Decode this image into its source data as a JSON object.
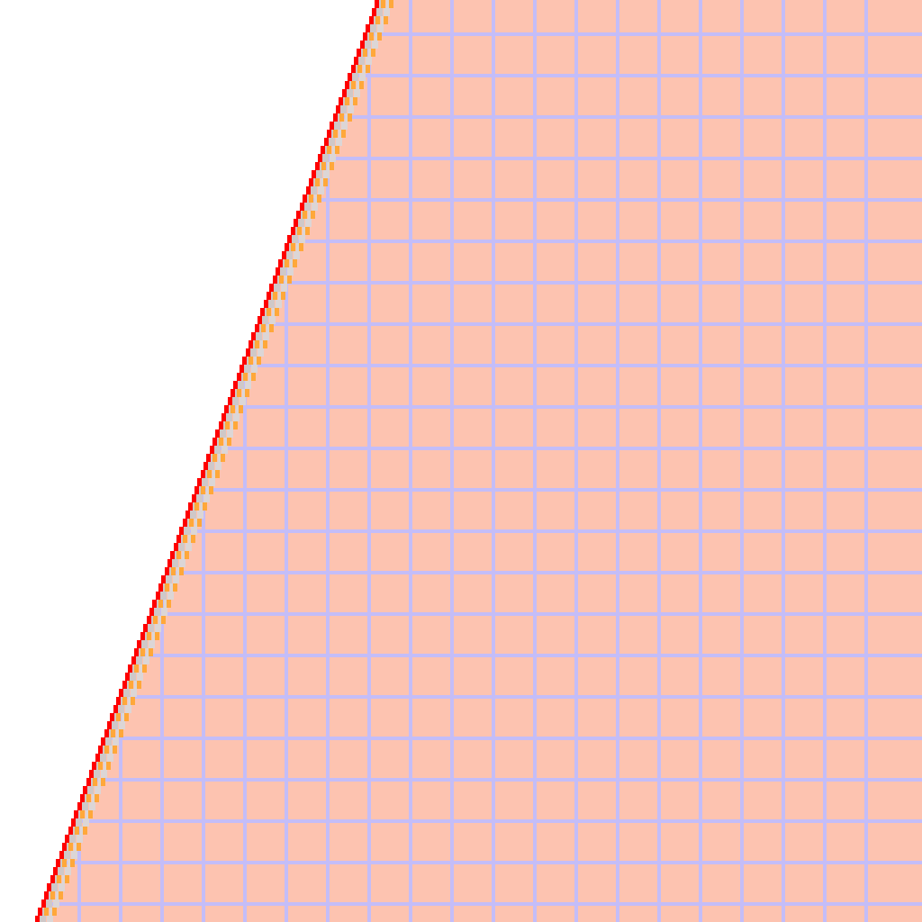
{
  "view": {
    "kind": "zoomed-pixel-canvas",
    "background_color": "#ffffff"
  },
  "region": {
    "fill_color": "#fdc3b0",
    "grid_color": "#c4bdf8",
    "grid_rows": 22,
    "grid_cols": 21
  },
  "boundary": {
    "stroke_colors": [
      "#ff0000",
      "#ffa83a",
      "#cfc8c8",
      "#dcd6d6"
    ],
    "pixelated": true
  }
}
